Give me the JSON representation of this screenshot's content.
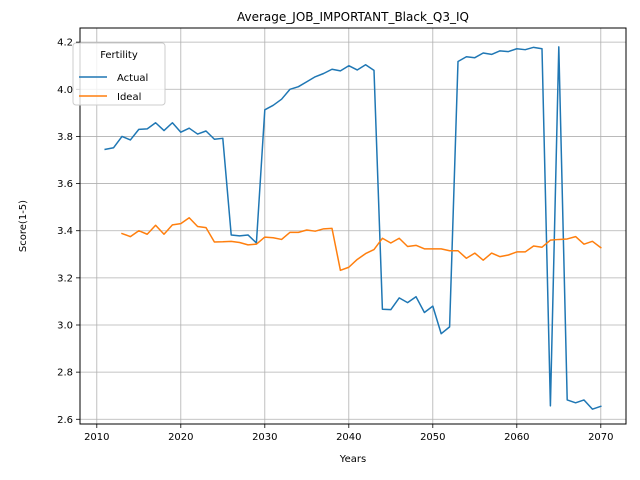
{
  "chart_data": {
    "type": "line",
    "title": "Average_JOB_IMPORTANT_Black_Q3_IQ",
    "xlabel": "Years",
    "ylabel": "Score(1-5)",
    "xlim": [
      2008,
      2073
    ],
    "ylim": [
      2.58,
      4.26
    ],
    "xticks": [
      2010,
      2020,
      2030,
      2040,
      2050,
      2060,
      2070
    ],
    "yticks": [
      2.6,
      2.8,
      3.0,
      3.2,
      3.4,
      3.6,
      3.8,
      4.0,
      4.2
    ],
    "ytick_labels": [
      "2.6",
      "2.8",
      "3.0",
      "3.2",
      "3.4",
      "3.6",
      "3.8",
      "4.0",
      "4.2"
    ],
    "grid": true,
    "legend": {
      "title": "Fertility",
      "position": "top-left"
    },
    "series": [
      {
        "name": "Actual",
        "color": "#1f77b4",
        "x": [
          2011,
          2012,
          2013,
          2014,
          2015,
          2016,
          2017,
          2018,
          2019,
          2020,
          2021,
          2022,
          2023,
          2024,
          2025,
          2026,
          2027,
          2028,
          2029,
          2030,
          2031,
          2032,
          2033,
          2034,
          2035,
          2036,
          2037,
          2038,
          2039,
          2040,
          2041,
          2042,
          2043,
          2044,
          2045,
          2046,
          2047,
          2048,
          2049,
          2050,
          2051,
          2052,
          2053,
          2054,
          2055,
          2056,
          2057,
          2058,
          2059,
          2060,
          2061,
          2062,
          2063,
          2064,
          2065,
          2066,
          2067,
          2068,
          2069,
          2070
        ],
        "y": [
          3.745,
          3.752,
          3.8,
          3.785,
          3.83,
          3.832,
          3.858,
          3.825,
          3.858,
          3.818,
          3.835,
          3.81,
          3.823,
          3.788,
          3.792,
          3.382,
          3.378,
          3.382,
          3.348,
          3.913,
          3.932,
          3.958,
          4.0,
          4.011,
          4.032,
          4.053,
          4.067,
          4.085,
          4.078,
          4.1,
          4.082,
          4.104,
          4.08,
          3.067,
          3.065,
          3.115,
          3.095,
          3.12,
          3.053,
          3.08,
          2.963,
          2.992,
          4.118,
          4.138,
          4.134,
          4.154,
          4.148,
          4.163,
          4.16,
          4.172,
          4.168,
          4.178,
          4.172,
          2.657,
          4.18,
          2.682,
          2.67,
          2.682,
          2.643,
          2.655
        ]
      },
      {
        "name": "Ideal",
        "color": "#ff7f0e",
        "x": [
          2013,
          2014,
          2015,
          2016,
          2017,
          2018,
          2019,
          2020,
          2021,
          2022,
          2023,
          2024,
          2025,
          2026,
          2027,
          2028,
          2029,
          2030,
          2031,
          2032,
          2033,
          2034,
          2035,
          2036,
          2037,
          2038,
          2039,
          2040,
          2041,
          2042,
          2043,
          2044,
          2045,
          2046,
          2047,
          2048,
          2049,
          2050,
          2051,
          2052,
          2053,
          2054,
          2055,
          2056,
          2057,
          2058,
          2059,
          2060,
          2061,
          2062,
          2063,
          2064,
          2065,
          2066,
          2067,
          2068,
          2069,
          2070
        ],
        "y": [
          3.388,
          3.375,
          3.4,
          3.385,
          3.423,
          3.385,
          3.425,
          3.43,
          3.455,
          3.418,
          3.413,
          3.352,
          3.353,
          3.355,
          3.35,
          3.34,
          3.343,
          3.373,
          3.37,
          3.363,
          3.393,
          3.393,
          3.403,
          3.398,
          3.408,
          3.41,
          3.232,
          3.245,
          3.278,
          3.303,
          3.32,
          3.368,
          3.348,
          3.368,
          3.333,
          3.338,
          3.323,
          3.323,
          3.323,
          3.315,
          3.315,
          3.283,
          3.305,
          3.275,
          3.305,
          3.29,
          3.297,
          3.31,
          3.31,
          3.335,
          3.33,
          3.36,
          3.363,
          3.365,
          3.375,
          3.343,
          3.355,
          3.328
        ]
      }
    ]
  }
}
